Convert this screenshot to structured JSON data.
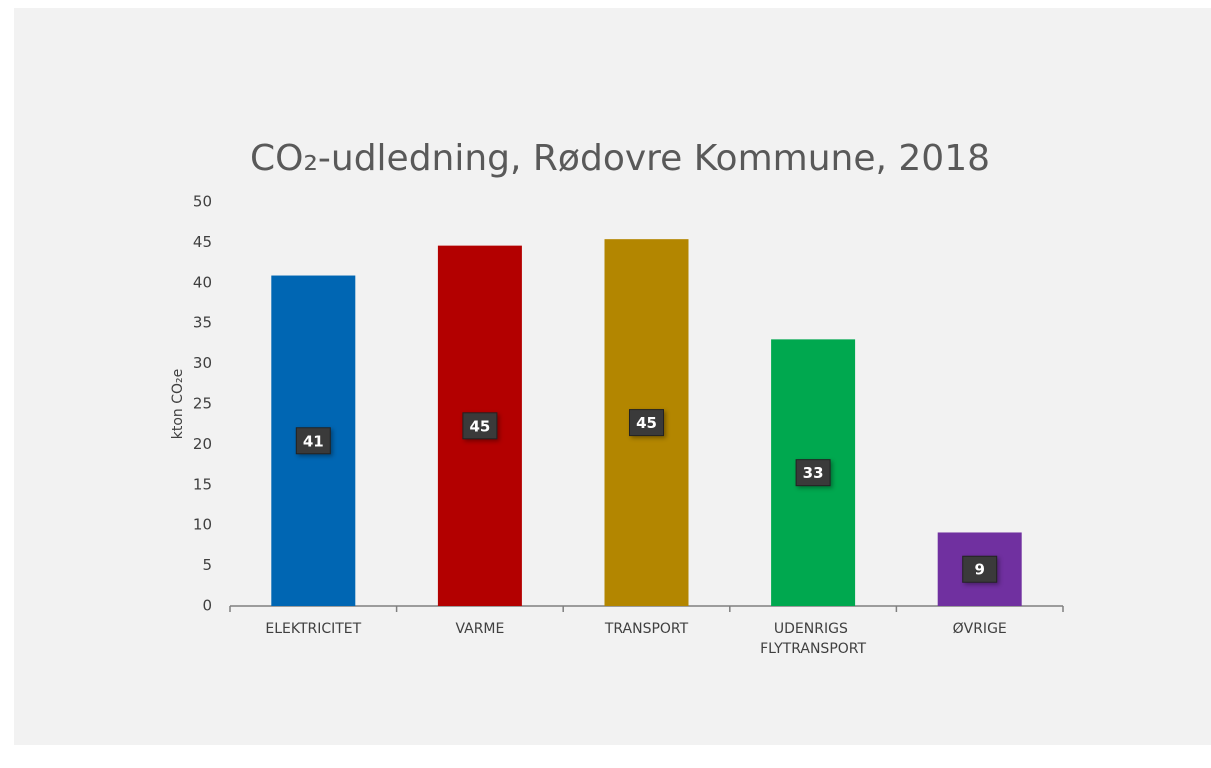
{
  "chart_data": {
    "type": "bar",
    "title": "CO₂-udledning, Rødovre Kommune, 2018",
    "y_label": "kton CO₂e",
    "categories": [
      "ELEKTRICITET",
      "VARME",
      "TRANSPORT",
      "UDENRIGS FLYTRANSPORT",
      "ØVRIGE"
    ],
    "values": [
      40.9,
      44.6,
      45.4,
      33.0,
      9.1
    ],
    "value_labels": [
      "41",
      "45",
      "45",
      "33",
      "9"
    ],
    "colors": [
      "#0066b3",
      "#b30000",
      "#b38600",
      "#00a84f",
      "#7030a0"
    ],
    "ylim": [
      0,
      50
    ],
    "yticks": [
      0,
      5,
      10,
      15,
      20,
      25,
      30,
      35,
      40,
      45,
      50
    ],
    "grid": false
  }
}
